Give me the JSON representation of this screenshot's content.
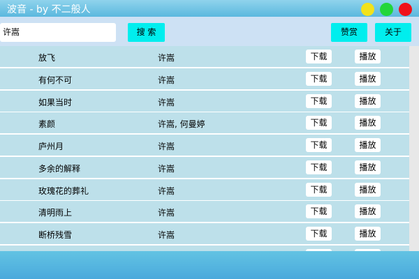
{
  "window": {
    "title": "波音 - by 不二般人"
  },
  "toolbar": {
    "search_text": "许嵩",
    "search_button": "搜 索",
    "donate_button": "赞赏",
    "about_button": "关于"
  },
  "songs": [
    {
      "title": "放飞",
      "artist": "许嵩",
      "download": "下载",
      "play": "播放"
    },
    {
      "title": "有何不可",
      "artist": "许嵩",
      "download": "下载",
      "play": "播放"
    },
    {
      "title": "如果当时",
      "artist": "许嵩",
      "download": "下载",
      "play": "播放"
    },
    {
      "title": "素颜",
      "artist": "许嵩, 何曼婷",
      "download": "下载",
      "play": "播放"
    },
    {
      "title": "庐州月",
      "artist": "许嵩",
      "download": "下载",
      "play": "播放"
    },
    {
      "title": "多余的解释",
      "artist": "许嵩",
      "download": "下载",
      "play": "播放"
    },
    {
      "title": "玫瑰花的葬礼",
      "artist": "许嵩",
      "download": "下载",
      "play": "播放"
    },
    {
      "title": "清明雨上",
      "artist": "许嵩",
      "download": "下载",
      "play": "播放"
    },
    {
      "title": "断桥残雪",
      "artist": "许嵩",
      "download": "下载",
      "play": "播放"
    }
  ]
}
